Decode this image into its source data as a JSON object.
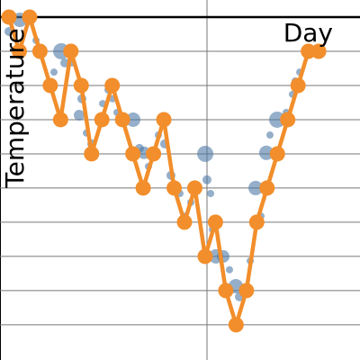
{
  "chart_data": [
    {
      "type": "scatter",
      "xlabel": "Day",
      "ylabel": "Temperature",
      "color": "#4e79a7",
      "xlim": [
        -0.87,
        34.0
      ],
      "ylim": [
        -0.03,
        10.5
      ],
      "xticks": [
        19.18
      ],
      "yticks": [
        1,
        2,
        3,
        4,
        5,
        6,
        7,
        8,
        9,
        10
      ],
      "grid": true,
      "axis_line_y": 10,
      "x": [
        1.05,
        0,
        2.62,
        3.14,
        4.36,
        5.06,
        5.41,
        6.1,
        6.8,
        7.06,
        7.5,
        8.02,
        9.07,
        9.59,
        10.03,
        10.46,
        12.03,
        12.64,
        13.08,
        13.51,
        14.47,
        15.08,
        15.69,
        16.56,
        17.0,
        17.61,
        19.01,
        19.18,
        19.53,
        19.71,
        20.05,
        20.75,
        21.36,
        21.97,
        22.32,
        23.37,
        23.89,
        24.41,
        24.93,
        25.28,
        25.98,
        26.85,
        27.46,
        27.72,
        28.16
      ],
      "values": [
        9.92,
        9.58,
        9.32,
        8.92,
        8.39,
        9.0,
        8.66,
        8.66,
        7.13,
        7.61,
        6.61,
        6.29,
        7.47,
        7.87,
        7.61,
        7.21,
        7.0,
        6.16,
        6.03,
        5.63,
        6.55,
        6.29,
        5.37,
        4.84,
        4.18,
        4.58,
        6.0,
        5.24,
        4.84,
        3.79,
        3.0,
        3.0,
        2.61,
        2.13,
        1.82,
        2.87,
        5.0,
        4.18,
        6.03,
        6.55,
        7.0,
        7.21,
        7.74,
        8.13,
        8.39
      ],
      "sizes": [
        8,
        5,
        4,
        4,
        4,
        9,
        5,
        4,
        6,
        5,
        4,
        5,
        4,
        4,
        4,
        4,
        8,
        5,
        7,
        4,
        4,
        5,
        5,
        4,
        4,
        4,
        9,
        5,
        4,
        4,
        8,
        7,
        4,
        8,
        5,
        4,
        8,
        4,
        8,
        4,
        9,
        4,
        4,
        4,
        4
      ]
    },
    {
      "type": "line",
      "color": "#f28e2b",
      "xlim": [
        -0.87,
        34.0
      ],
      "ylim": [
        -0.03,
        10.5
      ],
      "x": [
        0,
        1,
        2,
        3,
        4,
        5,
        6,
        7,
        8,
        9,
        10,
        11,
        12,
        13,
        14,
        15,
        16,
        17,
        18,
        19,
        20,
        21,
        22,
        23,
        24,
        25,
        26,
        27,
        28,
        29,
        30
      ],
      "values": [
        10,
        9,
        10,
        9,
        8,
        7,
        9,
        8,
        6,
        7,
        8,
        7,
        6,
        5,
        6,
        7,
        5,
        4,
        5,
        3,
        4,
        2,
        1,
        2,
        4,
        5,
        6,
        7,
        8,
        9,
        9
      ]
    }
  ]
}
